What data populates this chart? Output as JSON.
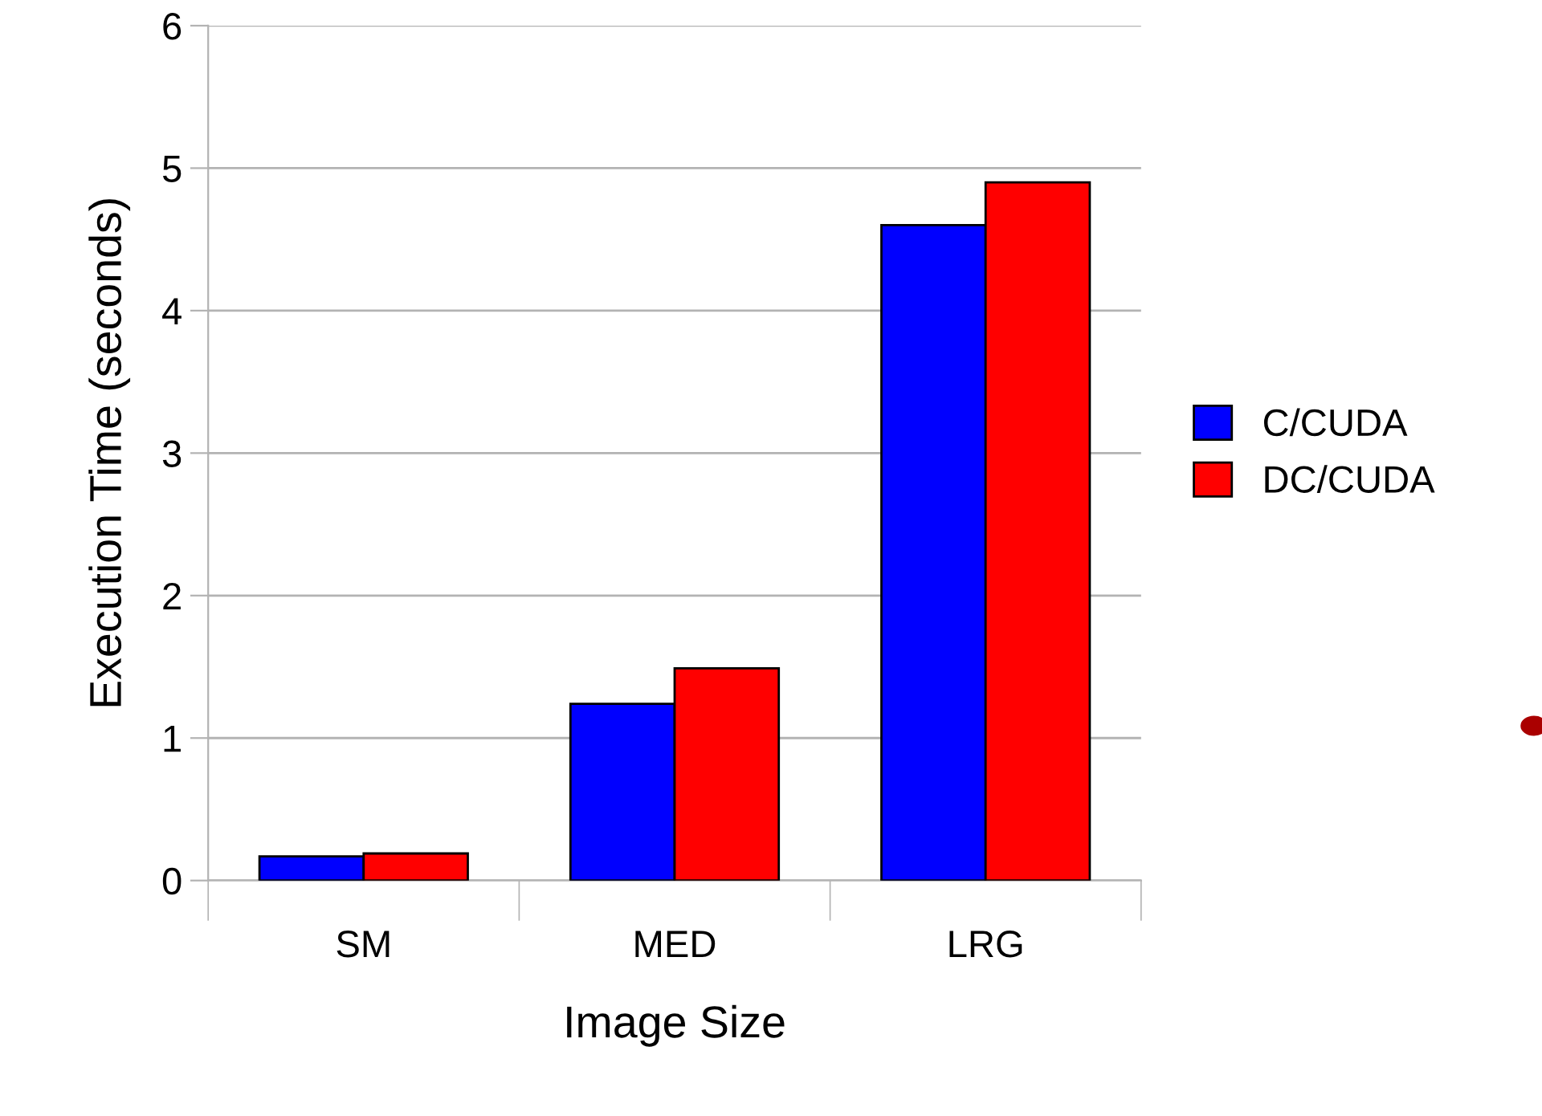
{
  "chart_data": {
    "type": "bar",
    "xlabel": "Image Size",
    "ylabel": "Execution Time (seconds)",
    "categories": [
      "SM",
      "MED",
      "LRG"
    ],
    "series": [
      {
        "name": "C/CUDA",
        "color": "#0000ff",
        "values": [
          0.17,
          1.24,
          4.6
        ]
      },
      {
        "name": "DC/CUDA",
        "color": "#ff0000",
        "values": [
          0.19,
          1.49,
          4.9
        ]
      }
    ],
    "ylim": [
      0,
      6
    ],
    "yticks": [
      0,
      1,
      2,
      3,
      4,
      5,
      6
    ],
    "grid": "y",
    "legend": "right"
  }
}
